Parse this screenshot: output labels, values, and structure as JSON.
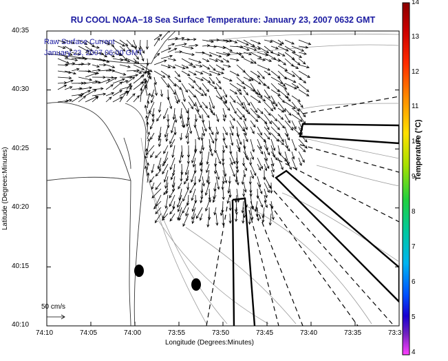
{
  "title": "RU COOL  NOAA−18  Sea Surface Temperature:  January 23, 2007 0632 GMT",
  "legend": {
    "line1": "Raw Surface Current",
    "line2": "January 23, 2007 06:00 GMT"
  },
  "axes": {
    "xlabel": "Longitude (Degrees:Minutes)",
    "ylabel": "Latitude (Degrees:Minutes)",
    "xticks": [
      "74:10",
      "74:05",
      "74:00",
      "73:55",
      "73:50",
      "73:45",
      "73:40",
      "73:35",
      "73:3"
    ],
    "yticks": [
      "40:35",
      "40:30",
      "40:25",
      "40:20",
      "40:15",
      "40:10"
    ]
  },
  "colorbar": {
    "title": "Temperature (°C)",
    "ticks": [
      "14",
      "13",
      "12",
      "11",
      "10",
      "9",
      "8",
      "7",
      "6",
      "5",
      "4"
    ],
    "colors": [
      "#8b0000",
      "#cc0000",
      "#ff2a00",
      "#ff8c00",
      "#ffe000",
      "#a8e000",
      "#20d040",
      "#00c8a0",
      "#00b4f0",
      "#0050ff",
      "#1a00d0",
      "#7020c0",
      "#ff40ff"
    ]
  },
  "scale": {
    "label": "50 cm/s"
  }
}
